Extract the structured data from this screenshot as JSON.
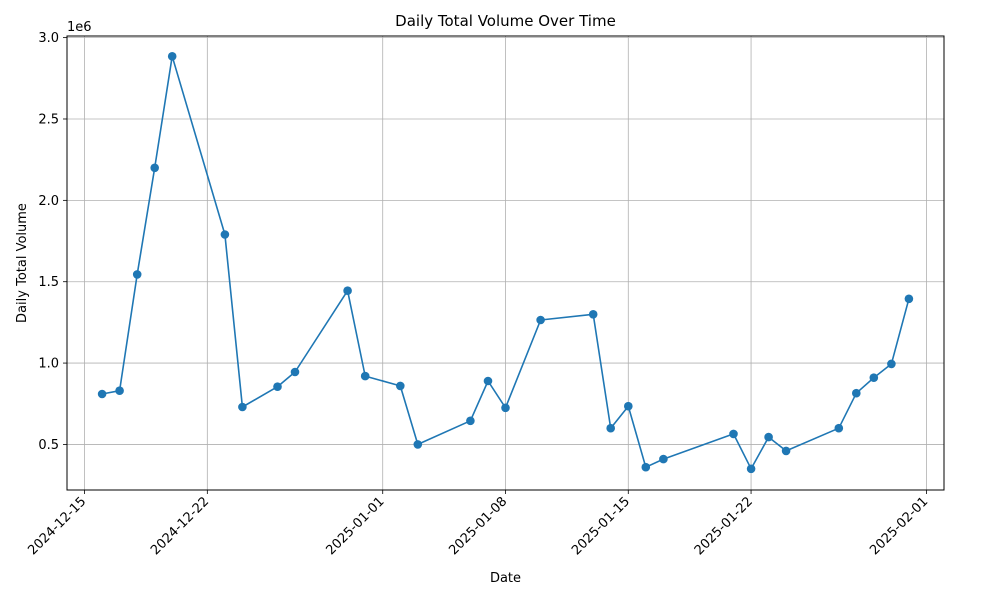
{
  "chart_data": {
    "type": "line",
    "title": "Daily Total Volume Over Time",
    "xlabel": "Date",
    "ylabel": "Daily Total Volume",
    "y_offset_label": "1e6",
    "y_scale_factor": 1000000,
    "grid": true,
    "marker": "circle",
    "line_color": "#1f77b4",
    "xlim": [
      "2024-12-14",
      "2025-02-02"
    ],
    "ylim": [
      220000,
      3010000
    ],
    "x_ticks": [
      "2024-12-15",
      "2024-12-22",
      "2025-01-01",
      "2025-01-08",
      "2025-01-15",
      "2025-01-22",
      "2025-02-01"
    ],
    "y_ticks": [
      500000,
      1000000,
      1500000,
      2000000,
      2500000,
      3000000
    ],
    "y_tick_labels": [
      "0.5",
      "1.0",
      "1.5",
      "2.0",
      "2.5",
      "3.0"
    ],
    "series": [
      {
        "x": [
          "2024-12-16",
          "2024-12-17",
          "2024-12-18",
          "2024-12-19",
          "2024-12-20",
          "2024-12-23",
          "2024-12-24",
          "2024-12-26",
          "2024-12-27",
          "2024-12-30",
          "2024-12-31",
          "2025-01-02",
          "2025-01-03",
          "2025-01-06",
          "2025-01-07",
          "2025-01-08",
          "2025-01-10",
          "2025-01-13",
          "2025-01-14",
          "2025-01-15",
          "2025-01-16",
          "2025-01-17",
          "2025-01-21",
          "2025-01-22",
          "2025-01-23",
          "2025-01-24",
          "2025-01-27",
          "2025-01-28",
          "2025-01-29",
          "2025-01-30",
          "2025-01-31"
        ],
        "values": [
          810000,
          830000,
          1545000,
          2200000,
          2885000,
          1790000,
          730000,
          855000,
          945000,
          1445000,
          920000,
          860000,
          500000,
          645000,
          890000,
          725000,
          1265000,
          1300000,
          600000,
          735000,
          360000,
          410000,
          565000,
          350000,
          545000,
          460000,
          600000,
          815000,
          910000,
          995000,
          1395000
        ]
      }
    ]
  }
}
